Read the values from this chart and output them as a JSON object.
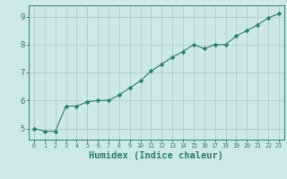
{
  "x": [
    0,
    1,
    2,
    3,
    4,
    5,
    6,
    7,
    8,
    9,
    10,
    11,
    12,
    13,
    14,
    15,
    16,
    17,
    18,
    19,
    20,
    21,
    22,
    23
  ],
  "y": [
    5.0,
    4.9,
    4.9,
    5.8,
    5.8,
    5.95,
    6.0,
    6.0,
    6.2,
    6.45,
    6.7,
    7.05,
    7.3,
    7.55,
    7.75,
    8.0,
    7.85,
    8.0,
    8.0,
    8.3,
    8.5,
    8.7,
    8.95,
    9.1
  ],
  "line_color": "#2e7d6e",
  "marker": "D",
  "marker_size": 2.5,
  "bg_color": "#cde8e8",
  "grid_color": "#b0cccc",
  "axis_color": "#2e7d6e",
  "xlabel": "Humidex (Indice chaleur)",
  "xlabel_fontsize": 7.5,
  "ylabel_ticks": [
    5,
    6,
    7,
    8,
    9
  ],
  "xlim": [
    -0.5,
    23.5
  ],
  "ylim": [
    4.6,
    9.4
  ],
  "xtick_fontsize": 4.8,
  "ytick_fontsize": 6.5
}
